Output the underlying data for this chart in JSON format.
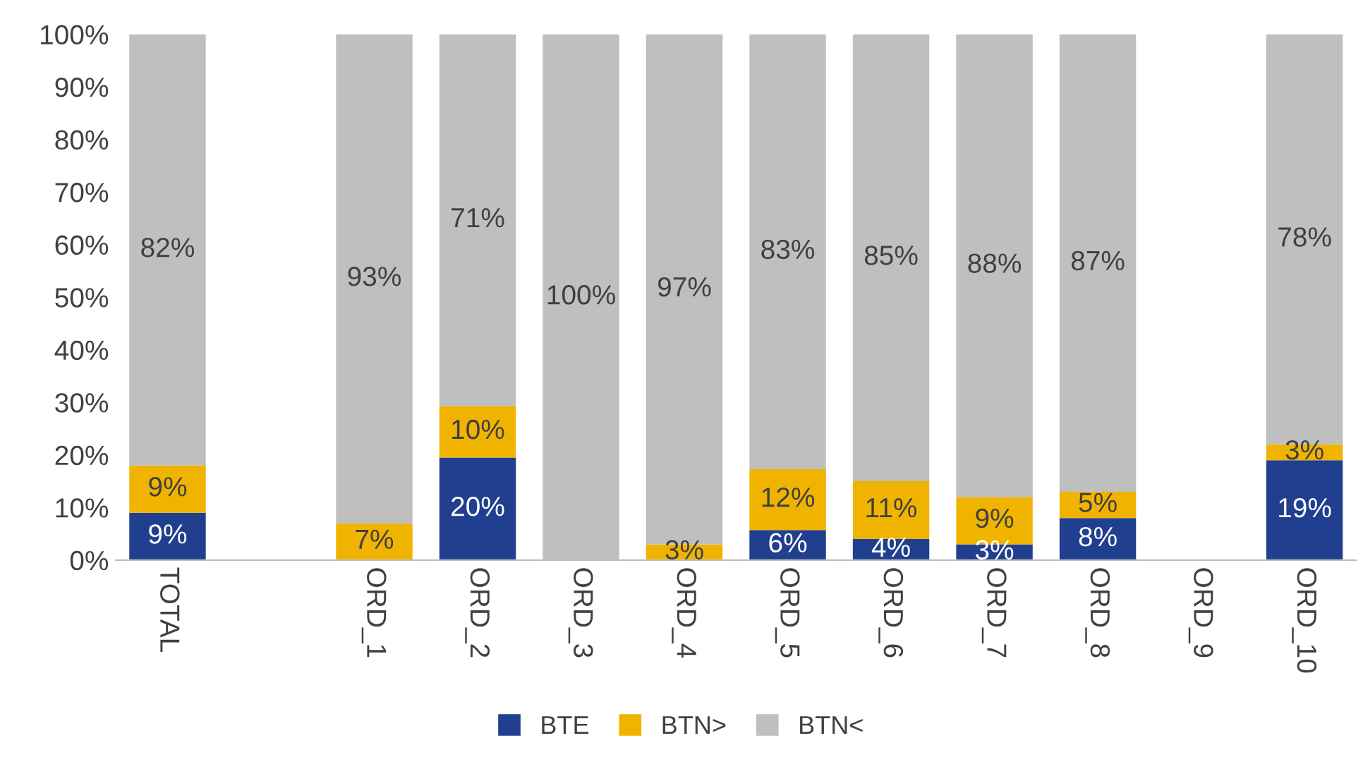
{
  "chart_data": {
    "type": "bar",
    "stacked": true,
    "categories": [
      "TOTAL",
      null,
      "ORD_1",
      "ORD_2",
      "ORD_3",
      "ORD_4",
      "ORD_5",
      "ORD_6",
      "ORD_7",
      "ORD_8",
      "ORD_9",
      "ORD_10"
    ],
    "series": [
      {
        "name": "BTE",
        "color": "#203f8f",
        "values": [
          9,
          null,
          0,
          19.5,
          0,
          0,
          5.7,
          4,
          3,
          8,
          null,
          19
        ],
        "value_labels": [
          "9%",
          null,
          null,
          "20%",
          null,
          null,
          "6%",
          "4%",
          "3%",
          "8%",
          null,
          "19%"
        ]
      },
      {
        "name": "BTN>",
        "color": "#f0b400",
        "values": [
          9,
          null,
          7,
          9.8,
          0,
          3,
          11.6,
          11,
          9,
          5,
          null,
          3
        ],
        "value_labels": [
          "9%",
          null,
          "7%",
          "10%",
          null,
          "3%",
          "12%",
          "11%",
          "9%",
          "5%",
          null,
          "3%"
        ]
      },
      {
        "name": "BTN<",
        "color": "#bfbfbf",
        "values": [
          82,
          null,
          93,
          70.7,
          100,
          97,
          82.7,
          85,
          88,
          87,
          null,
          78
        ],
        "value_labels": [
          "82%",
          null,
          "93%",
          "71%",
          "100%",
          "97%",
          "83%",
          "85%",
          "88%",
          "87%",
          null,
          "78%"
        ]
      }
    ],
    "ylim": [
      0,
      100
    ],
    "yticks": [
      {
        "value": 0,
        "label": "0%"
      },
      {
        "value": 10,
        "label": "10%"
      },
      {
        "value": 20,
        "label": "20%"
      },
      {
        "value": 30,
        "label": "30%"
      },
      {
        "value": 40,
        "label": "40%"
      },
      {
        "value": 50,
        "label": "50%"
      },
      {
        "value": 60,
        "label": "60%"
      },
      {
        "value": 70,
        "label": "70%"
      },
      {
        "value": 80,
        "label": "80%"
      },
      {
        "value": 90,
        "label": "90%"
      },
      {
        "value": 100,
        "label": "100%"
      }
    ],
    "grid": false,
    "legend": "bottom"
  }
}
